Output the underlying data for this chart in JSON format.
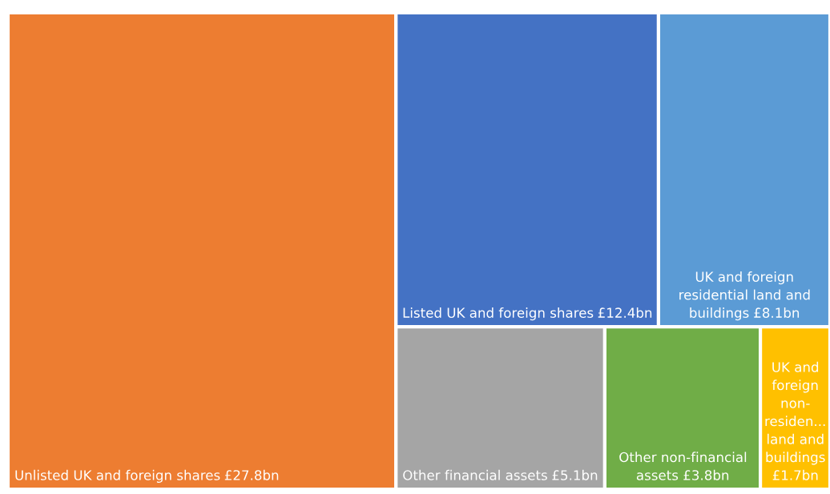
{
  "chart_data": {
    "type": "other",
    "categories": [
      "Unlisted UK and foreign shares",
      "Listed UK and foreign shares",
      "UK and foreign residential land and buildings",
      "Other financial assets",
      "Other non-financial assets",
      "UK and foreign non-residen... land and buildings"
    ],
    "values": [
      27.8,
      12.4,
      8.1,
      5.1,
      3.8,
      1.7
    ],
    "value_labels": [
      "£27.8bn",
      "£12.4bn",
      "£8.1bn",
      "£5.1bn",
      "£3.8bn",
      "£1.7bn"
    ],
    "colors": [
      "#ed7d31",
      "#4472c4",
      "#5b9bd5",
      "#a5a5a5",
      "#70ad47",
      "#ffc000"
    ]
  }
}
